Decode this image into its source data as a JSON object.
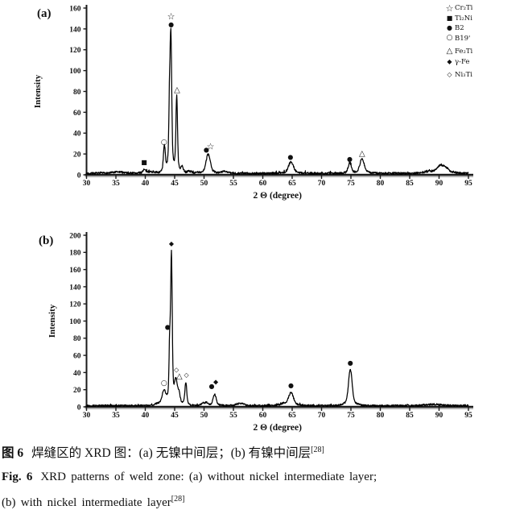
{
  "figure": {
    "caption_zh_bold": "图 6",
    "caption_zh_text": "焊缝区的 XRD 图：(a) 无镍中间层；(b) 有镍中间层",
    "caption_zh_ref": "[28]",
    "caption_en_bold": "Fig. 6",
    "caption_en_text": "XRD patterns of weld zone: (a) without nickel intermediate layer;",
    "caption_en_line2": "(b) with nickel intermediate layer",
    "caption_en_ref": "[28]"
  },
  "legend": {
    "items": [
      {
        "symbol": "☆",
        "label": "Cr₂Ti",
        "gap": false
      },
      {
        "symbol": "■",
        "label": "Ti₂Ni",
        "gap": false
      },
      {
        "symbol": "●",
        "label": "B2",
        "gap": false
      },
      {
        "symbol": "○",
        "label": "B19'",
        "gap": false
      },
      {
        "symbol": "△",
        "label": "Fe₂Ti",
        "gap": true
      },
      {
        "symbol": "◆",
        "label": "γ-Fe",
        "gap": false
      },
      {
        "symbol": "◇",
        "label": "Ni₃Ti",
        "gap": true
      }
    ]
  },
  "chart_data": [
    {
      "type": "line",
      "panel_label": "(a)",
      "xlabel": "2 Θ (degree)",
      "ylabel": "Intensity",
      "xlim": [
        30,
        95
      ],
      "ylim": [
        0,
        160
      ],
      "xticks": [
        30,
        35,
        40,
        45,
        50,
        55,
        60,
        65,
        70,
        75,
        80,
        85,
        90,
        95
      ],
      "yticks": [
        0,
        20,
        40,
        60,
        80,
        100,
        120,
        140,
        160
      ],
      "grid": false,
      "legend_position": "top-right",
      "peaks": [
        {
          "x": 35.5,
          "h": 1.2,
          "w": 1.0
        },
        {
          "x": 39.8,
          "h": 3,
          "w": 0.22
        },
        {
          "x": 41.0,
          "h": 1.5,
          "w": 0.8
        },
        {
          "x": 43.25,
          "h": 26,
          "w": 0.16
        },
        {
          "x": 44.1,
          "h": 48,
          "w": 0.1
        },
        {
          "x": 44.35,
          "h": 132,
          "w": 0.14
        },
        {
          "x": 45.35,
          "h": 73,
          "w": 0.13
        },
        {
          "x": 46.3,
          "h": 6,
          "w": 0.2
        },
        {
          "x": 47.5,
          "h": 2,
          "w": 0.4
        },
        {
          "x": 50.7,
          "h": 18,
          "w": 0.35
        },
        {
          "x": 53.5,
          "h": 2,
          "w": 0.4
        },
        {
          "x": 64.8,
          "h": 11,
          "w": 0.4
        },
        {
          "x": 74.8,
          "h": 10,
          "w": 0.25
        },
        {
          "x": 76.9,
          "h": 14,
          "w": 0.35
        },
        {
          "x": 88.5,
          "h": 1.5,
          "w": 1.0
        },
        {
          "x": 90.3,
          "h": 7,
          "w": 0.55
        },
        {
          "x": 91.3,
          "h": 3.5,
          "w": 0.45
        }
      ],
      "markers": [
        {
          "symbol": "■",
          "phase": "Ti₂Ni",
          "x": 39.8,
          "y": 12
        },
        {
          "symbol": "○",
          "phase": "B19'",
          "x": 43.2,
          "y": 31
        },
        {
          "symbol": "☆",
          "phase": "Cr₂Ti",
          "x": 44.4,
          "y": 152
        },
        {
          "symbol": "●",
          "phase": "B2",
          "x": 44.4,
          "y": 144
        },
        {
          "symbol": "△",
          "phase": "Fe₂Ti",
          "x": 45.4,
          "y": 81
        },
        {
          "symbol": "●",
          "phase": "B2",
          "x": 50.4,
          "y": 24
        },
        {
          "symbol": "☆",
          "phase": "Cr₂Ti",
          "x": 51.1,
          "y": 27
        },
        {
          "symbol": "●",
          "phase": "B2",
          "x": 64.7,
          "y": 17
        },
        {
          "symbol": "●",
          "phase": "B2",
          "x": 74.8,
          "y": 15
        },
        {
          "symbol": "△",
          "phase": "Fe₂Ti",
          "x": 76.9,
          "y": 20
        }
      ]
    },
    {
      "type": "line",
      "panel_label": "(b)",
      "xlabel": "2 Θ (degree)",
      "ylabel": "Intensity",
      "xlim": [
        30,
        95
      ],
      "ylim": [
        0,
        200
      ],
      "xticks": [
        30,
        35,
        40,
        45,
        50,
        55,
        60,
        65,
        70,
        75,
        80,
        85,
        90,
        95
      ],
      "yticks": [
        0,
        20,
        40,
        60,
        80,
        100,
        120,
        140,
        160,
        180,
        200
      ],
      "grid": false,
      "legend_position": "none",
      "peaks": [
        {
          "x": 42.2,
          "h": 2,
          "w": 0.5
        },
        {
          "x": 43.2,
          "h": 18,
          "w": 0.3
        },
        {
          "x": 44.15,
          "h": 60,
          "w": 0.1
        },
        {
          "x": 44.45,
          "h": 172,
          "w": 0.13
        },
        {
          "x": 45.2,
          "h": 26,
          "w": 0.22
        },
        {
          "x": 45.7,
          "h": 14,
          "w": 0.22
        },
        {
          "x": 46.9,
          "h": 26,
          "w": 0.16
        },
        {
          "x": 49.8,
          "h": 3,
          "w": 0.25
        },
        {
          "x": 50.4,
          "h": 3,
          "w": 0.25
        },
        {
          "x": 51.8,
          "h": 13,
          "w": 0.25
        },
        {
          "x": 55.8,
          "h": 2,
          "w": 0.4
        },
        {
          "x": 56.6,
          "h": 2,
          "w": 0.3
        },
        {
          "x": 63.5,
          "h": 2,
          "w": 0.4
        },
        {
          "x": 64.8,
          "h": 15,
          "w": 0.4
        },
        {
          "x": 74.9,
          "h": 42,
          "w": 0.3
        },
        {
          "x": 89.0,
          "h": 1.5,
          "w": 1.2
        }
      ],
      "markers": [
        {
          "symbol": "○",
          "phase": "B19'",
          "x": 43.2,
          "y": 27
        },
        {
          "symbol": "●",
          "phase": "B2",
          "x": 43.8,
          "y": 93
        },
        {
          "symbol": "◆",
          "phase": "γ-Fe",
          "x": 44.45,
          "y": 190
        },
        {
          "symbol": "◇",
          "phase": "Ni₃Ti",
          "x": 45.3,
          "y": 43
        },
        {
          "symbol": "△",
          "phase": "Fe₂Ti",
          "x": 45.8,
          "y": 35
        },
        {
          "symbol": "◇",
          "phase": "Ni₃Ti",
          "x": 47.0,
          "y": 37
        },
        {
          "symbol": "●",
          "phase": "B2",
          "x": 51.3,
          "y": 24
        },
        {
          "symbol": "◆",
          "phase": "γ-Fe",
          "x": 52.0,
          "y": 29
        },
        {
          "symbol": "●",
          "phase": "B2",
          "x": 64.8,
          "y": 25
        },
        {
          "symbol": "●",
          "phase": "B2",
          "x": 74.9,
          "y": 51
        }
      ]
    }
  ],
  "colors": {
    "curve": "#000000",
    "axis": "#1a1a1a",
    "axis_shadow": "#aaaaaa",
    "background": "#ffffff",
    "text": "#111111"
  }
}
